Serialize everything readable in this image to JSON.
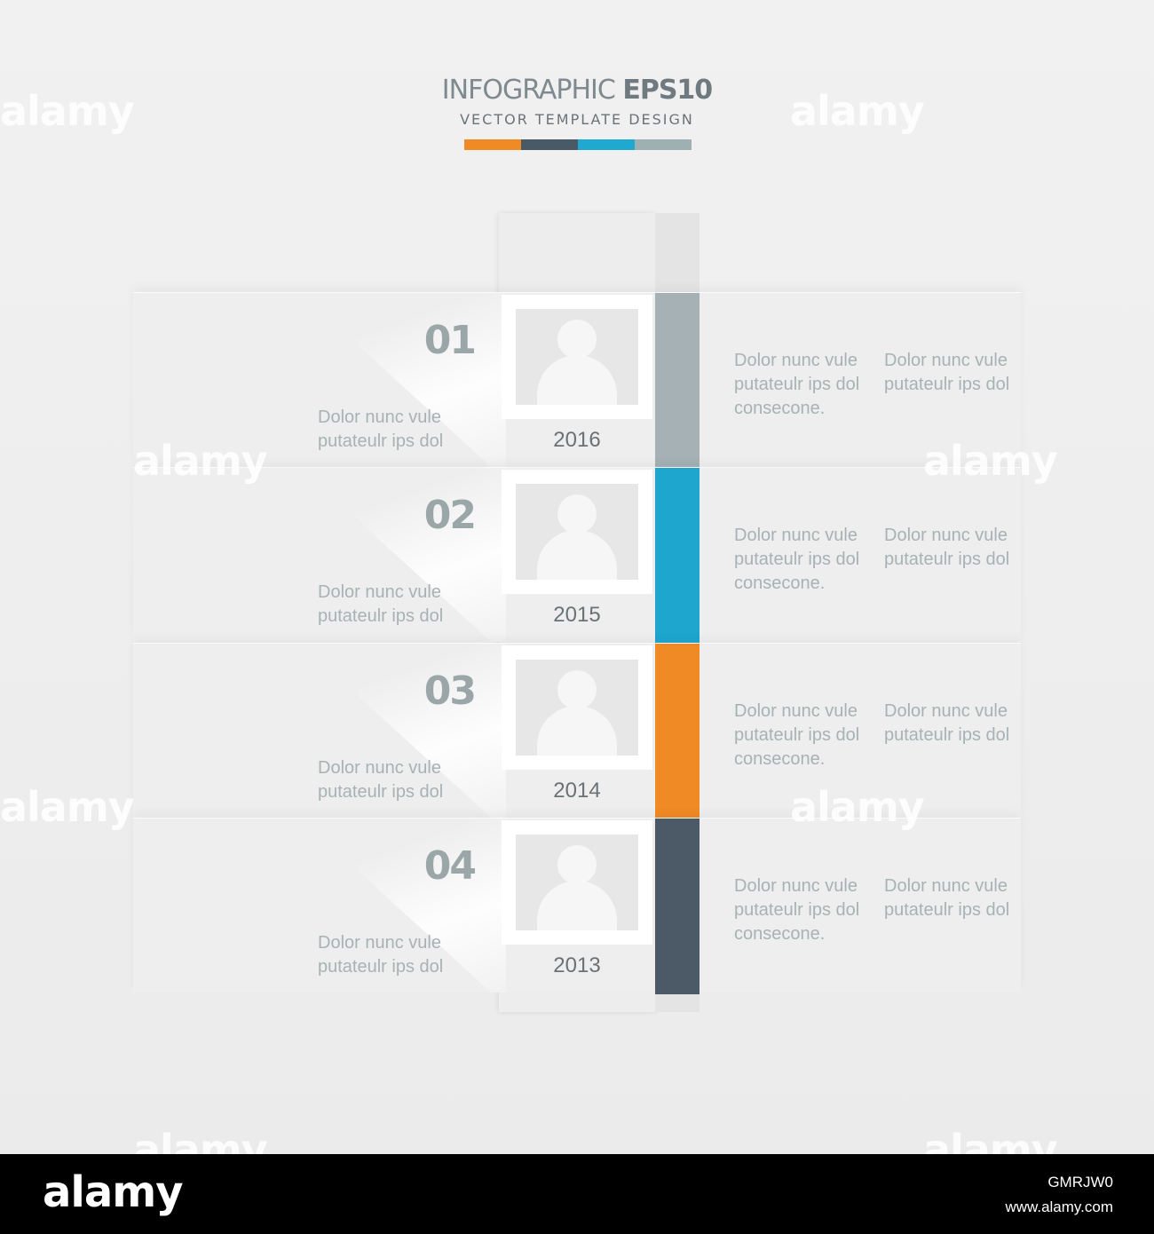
{
  "header": {
    "title_light": "INFOGRAPHIC ",
    "title_bold": "EPS10",
    "subtitle": "VECTOR TEMPLATE DESIGN",
    "color_swatches": [
      "#f08a24",
      "#4a5966",
      "#1fa8d0",
      "#9fb0b3"
    ]
  },
  "timeline": [
    {
      "number": "01",
      "year": "2016",
      "accent": "#a5b1b4",
      "left_text": [
        "Dolor  nunc vule",
        "putateulr ips dol"
      ],
      "right_col1": [
        "Dolor  nunc vule",
        "putateulr ips dol",
        "consecone."
      ],
      "right_col2": [
        "Dolor  nunc vule",
        "putateulr ips dol"
      ]
    },
    {
      "number": "02",
      "year": "2015",
      "accent": "#1ea6cf",
      "left_text": [
        "Dolor  nunc vule",
        "putateulr ips dol"
      ],
      "right_col1": [
        "Dolor  nunc vule",
        "putateulr ips dol",
        "consecone."
      ],
      "right_col2": [
        "Dolor  nunc vule",
        "putateulr ips dol"
      ]
    },
    {
      "number": "03",
      "year": "2014",
      "accent": "#f08a24",
      "left_text": [
        "Dolor  nunc vule",
        "putateulr ips dol"
      ],
      "right_col1": [
        "Dolor  nunc vule",
        "putateulr ips dol",
        "consecone."
      ],
      "right_col2": [
        "Dolor  nunc vule",
        "putateulr ips dol"
      ]
    },
    {
      "number": "04",
      "year": "2013",
      "accent": "#4b5a66",
      "left_text": [
        "Dolor  nunc vule",
        "putateulr ips dol"
      ],
      "right_col1": [
        "Dolor  nunc vule",
        "putateulr ips dol",
        "consecone."
      ],
      "right_col2": [
        "Dolor  nunc vule",
        "putateulr ips dol"
      ]
    }
  ],
  "watermark": "alamy",
  "footer": {
    "logo": "alamy",
    "image_id": "GMRJW0",
    "url": "www.alamy.com"
  }
}
